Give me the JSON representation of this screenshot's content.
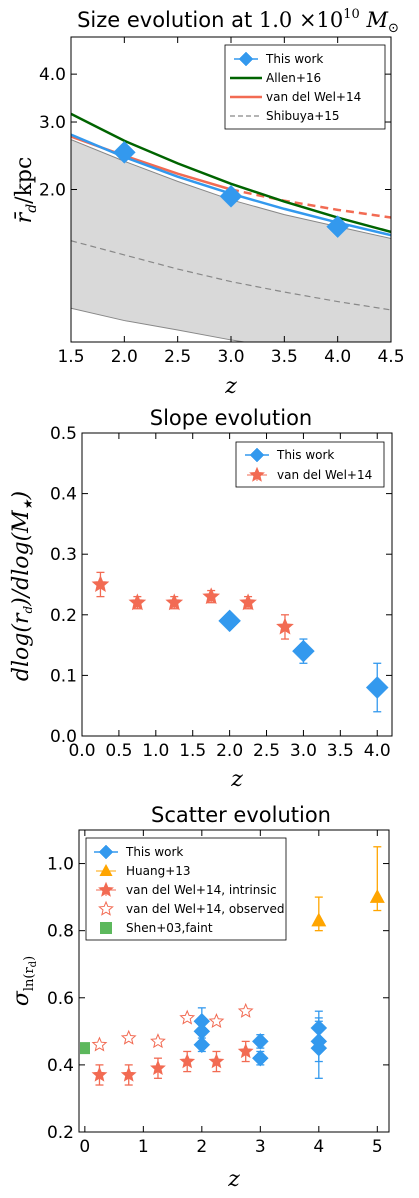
{
  "chart_data": [
    {
      "type": "line",
      "title": "Size evolution at 1.0 ×10¹⁰ M⊙",
      "title_parts": {
        "main": "Size evolution at ",
        "value": "1.0",
        "times": " ×10",
        "exp": "10",
        "unit": " M",
        "sub": "⊙"
      },
      "xlabel": "z",
      "ylabel": "r̄d/kpc",
      "ylabel_parts": {
        "main": "r̄",
        "sub": "d",
        "rest": "/kpc"
      },
      "xlim": [
        1.5,
        4.5
      ],
      "ylim": [
        0.8,
        5.0
      ],
      "yscale": "log",
      "x_ticks": [
        "1.5",
        "2.0",
        "2.5",
        "3.0",
        "3.5",
        "4.0",
        "4.5"
      ],
      "y_ticks": [
        "2.0",
        "3.0",
        "4.0"
      ],
      "legend_position": "top-right",
      "legend": [
        {
          "name": "This work",
          "color": "#3399ee",
          "marker": "diamond"
        },
        {
          "name": "Allen+16",
          "color": "#006400",
          "marker": "line"
        },
        {
          "name": "van del Wel+14",
          "color": "#f26b53",
          "marker": "line"
        },
        {
          "name": "Shibuya+15",
          "color": "#888888",
          "marker": "dashed"
        }
      ],
      "series": [
        {
          "name": "This work",
          "x": [
            2.0,
            3.0,
            4.0
          ],
          "y": [
            2.5,
            1.92,
            1.6
          ]
        },
        {
          "name": "Allen+16",
          "x": [
            1.5,
            2.0,
            2.5,
            3.0,
            3.5,
            4.0,
            4.5
          ],
          "y": [
            3.15,
            2.68,
            2.34,
            2.07,
            1.86,
            1.69,
            1.55
          ]
        },
        {
          "name": "van del Wel+14",
          "x": [
            1.5,
            2.0,
            2.5,
            3.0,
            3.5,
            4.0,
            4.5
          ],
          "y": [
            2.75,
            2.45,
            2.2,
            2.0,
            1.87,
            1.77,
            1.69
          ]
        },
        {
          "name": "Shibuya+15",
          "x": [
            1.5,
            2.0,
            2.5,
            3.0,
            3.5,
            4.0,
            4.5
          ],
          "y": [
            1.47,
            1.35,
            1.24,
            1.15,
            1.08,
            1.02,
            0.97
          ]
        }
      ],
      "band": {
        "x": [
          1.5,
          2.0,
          2.5,
          3.0,
          3.5,
          4.0,
          4.5
        ],
        "upper": [
          2.7,
          2.37,
          2.1,
          1.88,
          1.72,
          1.6,
          1.49
        ],
        "lower": [
          0.98,
          0.91,
          0.86,
          0.81,
          0.77,
          0.73,
          0.7
        ]
      },
      "fit_line": {
        "x": [
          1.5,
          2.0,
          2.5,
          3.0,
          3.5,
          4.0,
          4.5
        ],
        "y": [
          2.78,
          2.43,
          2.16,
          1.95,
          1.78,
          1.64,
          1.52
        ]
      }
    },
    {
      "type": "scatter",
      "title": "Slope evolution",
      "xlabel": "z",
      "ylabel": "dlog(rd)/dlog(M★)",
      "ylabel_parts": {
        "a": "dlog(r",
        "b": "d",
        "c": ")/dlog(M",
        "d": "★",
        "e": ")"
      },
      "xlim": [
        0.0,
        4.2
      ],
      "ylim": [
        0.0,
        0.5
      ],
      "x_ticks": [
        "0.0",
        "0.5",
        "1.0",
        "1.5",
        "2.0",
        "2.5",
        "3.0",
        "3.5",
        "4.0"
      ],
      "y_ticks": [
        "0.0",
        "0.1",
        "0.2",
        "0.3",
        "0.4",
        "0.5"
      ],
      "legend_position": "top-right",
      "legend": [
        {
          "name": "This work",
          "color": "#3399ee",
          "marker": "diamond"
        },
        {
          "name": "van del Wel+14",
          "color": "#f26b53",
          "marker": "star"
        }
      ],
      "series": [
        {
          "name": "This work",
          "x": [
            2.0,
            3.0,
            4.0
          ],
          "y": [
            0.19,
            0.14,
            0.08
          ],
          "err": [
            0.005,
            0.02,
            0.04
          ]
        },
        {
          "name": "van del Wel+14",
          "x": [
            0.25,
            0.75,
            1.25,
            1.75,
            2.25,
            2.75
          ],
          "y": [
            0.25,
            0.22,
            0.22,
            0.23,
            0.22,
            0.18
          ],
          "err": [
            0.02,
            0.01,
            0.01,
            0.01,
            0.01,
            0.02
          ]
        }
      ]
    },
    {
      "type": "scatter",
      "title": "Scatter evolution",
      "xlabel": "z",
      "ylabel": "σln(rd)",
      "ylabel_parts": {
        "main": "σ",
        "sub": "ln(r",
        "subsub": "d",
        "close": ")"
      },
      "xlim": [
        -0.1,
        5.2
      ],
      "ylim": [
        0.2,
        1.1
      ],
      "x_ticks": [
        "0",
        "1",
        "2",
        "3",
        "4",
        "5"
      ],
      "y_ticks": [
        "0.2",
        "0.4",
        "0.6",
        "0.8",
        "1.0"
      ],
      "legend_position": "top-left",
      "legend": [
        {
          "name": "This work",
          "color": "#3399ee",
          "marker": "diamond"
        },
        {
          "name": "Huang+13",
          "color": "#ffa500",
          "marker": "triangle"
        },
        {
          "name": "van del Wel+14, intrinsic",
          "color": "#f26b53",
          "marker": "star"
        },
        {
          "name": "van del Wel+14, observed",
          "color": "#f26b53",
          "marker": "star-open"
        },
        {
          "name": "Shen+03,faint",
          "color": "#5cb85c",
          "marker": "square"
        }
      ],
      "series": [
        {
          "name": "This work",
          "x": [
            2.0,
            2.0,
            2.0,
            3.0,
            3.0,
            4.0,
            4.0,
            4.0
          ],
          "y": [
            0.53,
            0.5,
            0.46,
            0.47,
            0.42,
            0.51,
            0.47,
            0.45
          ],
          "err": [
            0.04,
            0.03,
            0.02,
            0.02,
            0.02,
            0.05,
            0.06,
            0.09
          ]
        },
        {
          "name": "Huang+13",
          "x": [
            4.0,
            5.0
          ],
          "y": [
            0.83,
            0.9
          ],
          "err_low": [
            0.03,
            0.04
          ],
          "err_high": [
            0.07,
            0.15
          ]
        },
        {
          "name": "van del Wel+14, intrinsic",
          "x": [
            0.25,
            0.75,
            1.25,
            1.75,
            2.25,
            2.75
          ],
          "y": [
            0.37,
            0.37,
            0.39,
            0.41,
            0.41,
            0.44
          ],
          "err": [
            0.03,
            0.03,
            0.03,
            0.03,
            0.03,
            0.03
          ]
        },
        {
          "name": "van del Wel+14, observed",
          "x": [
            0.25,
            0.75,
            1.25,
            1.75,
            2.25,
            2.75
          ],
          "y": [
            0.46,
            0.48,
            0.47,
            0.54,
            0.53,
            0.56
          ]
        },
        {
          "name": "Shen+03,faint",
          "x": [
            -0.02
          ],
          "y": [
            0.45
          ]
        }
      ]
    }
  ]
}
